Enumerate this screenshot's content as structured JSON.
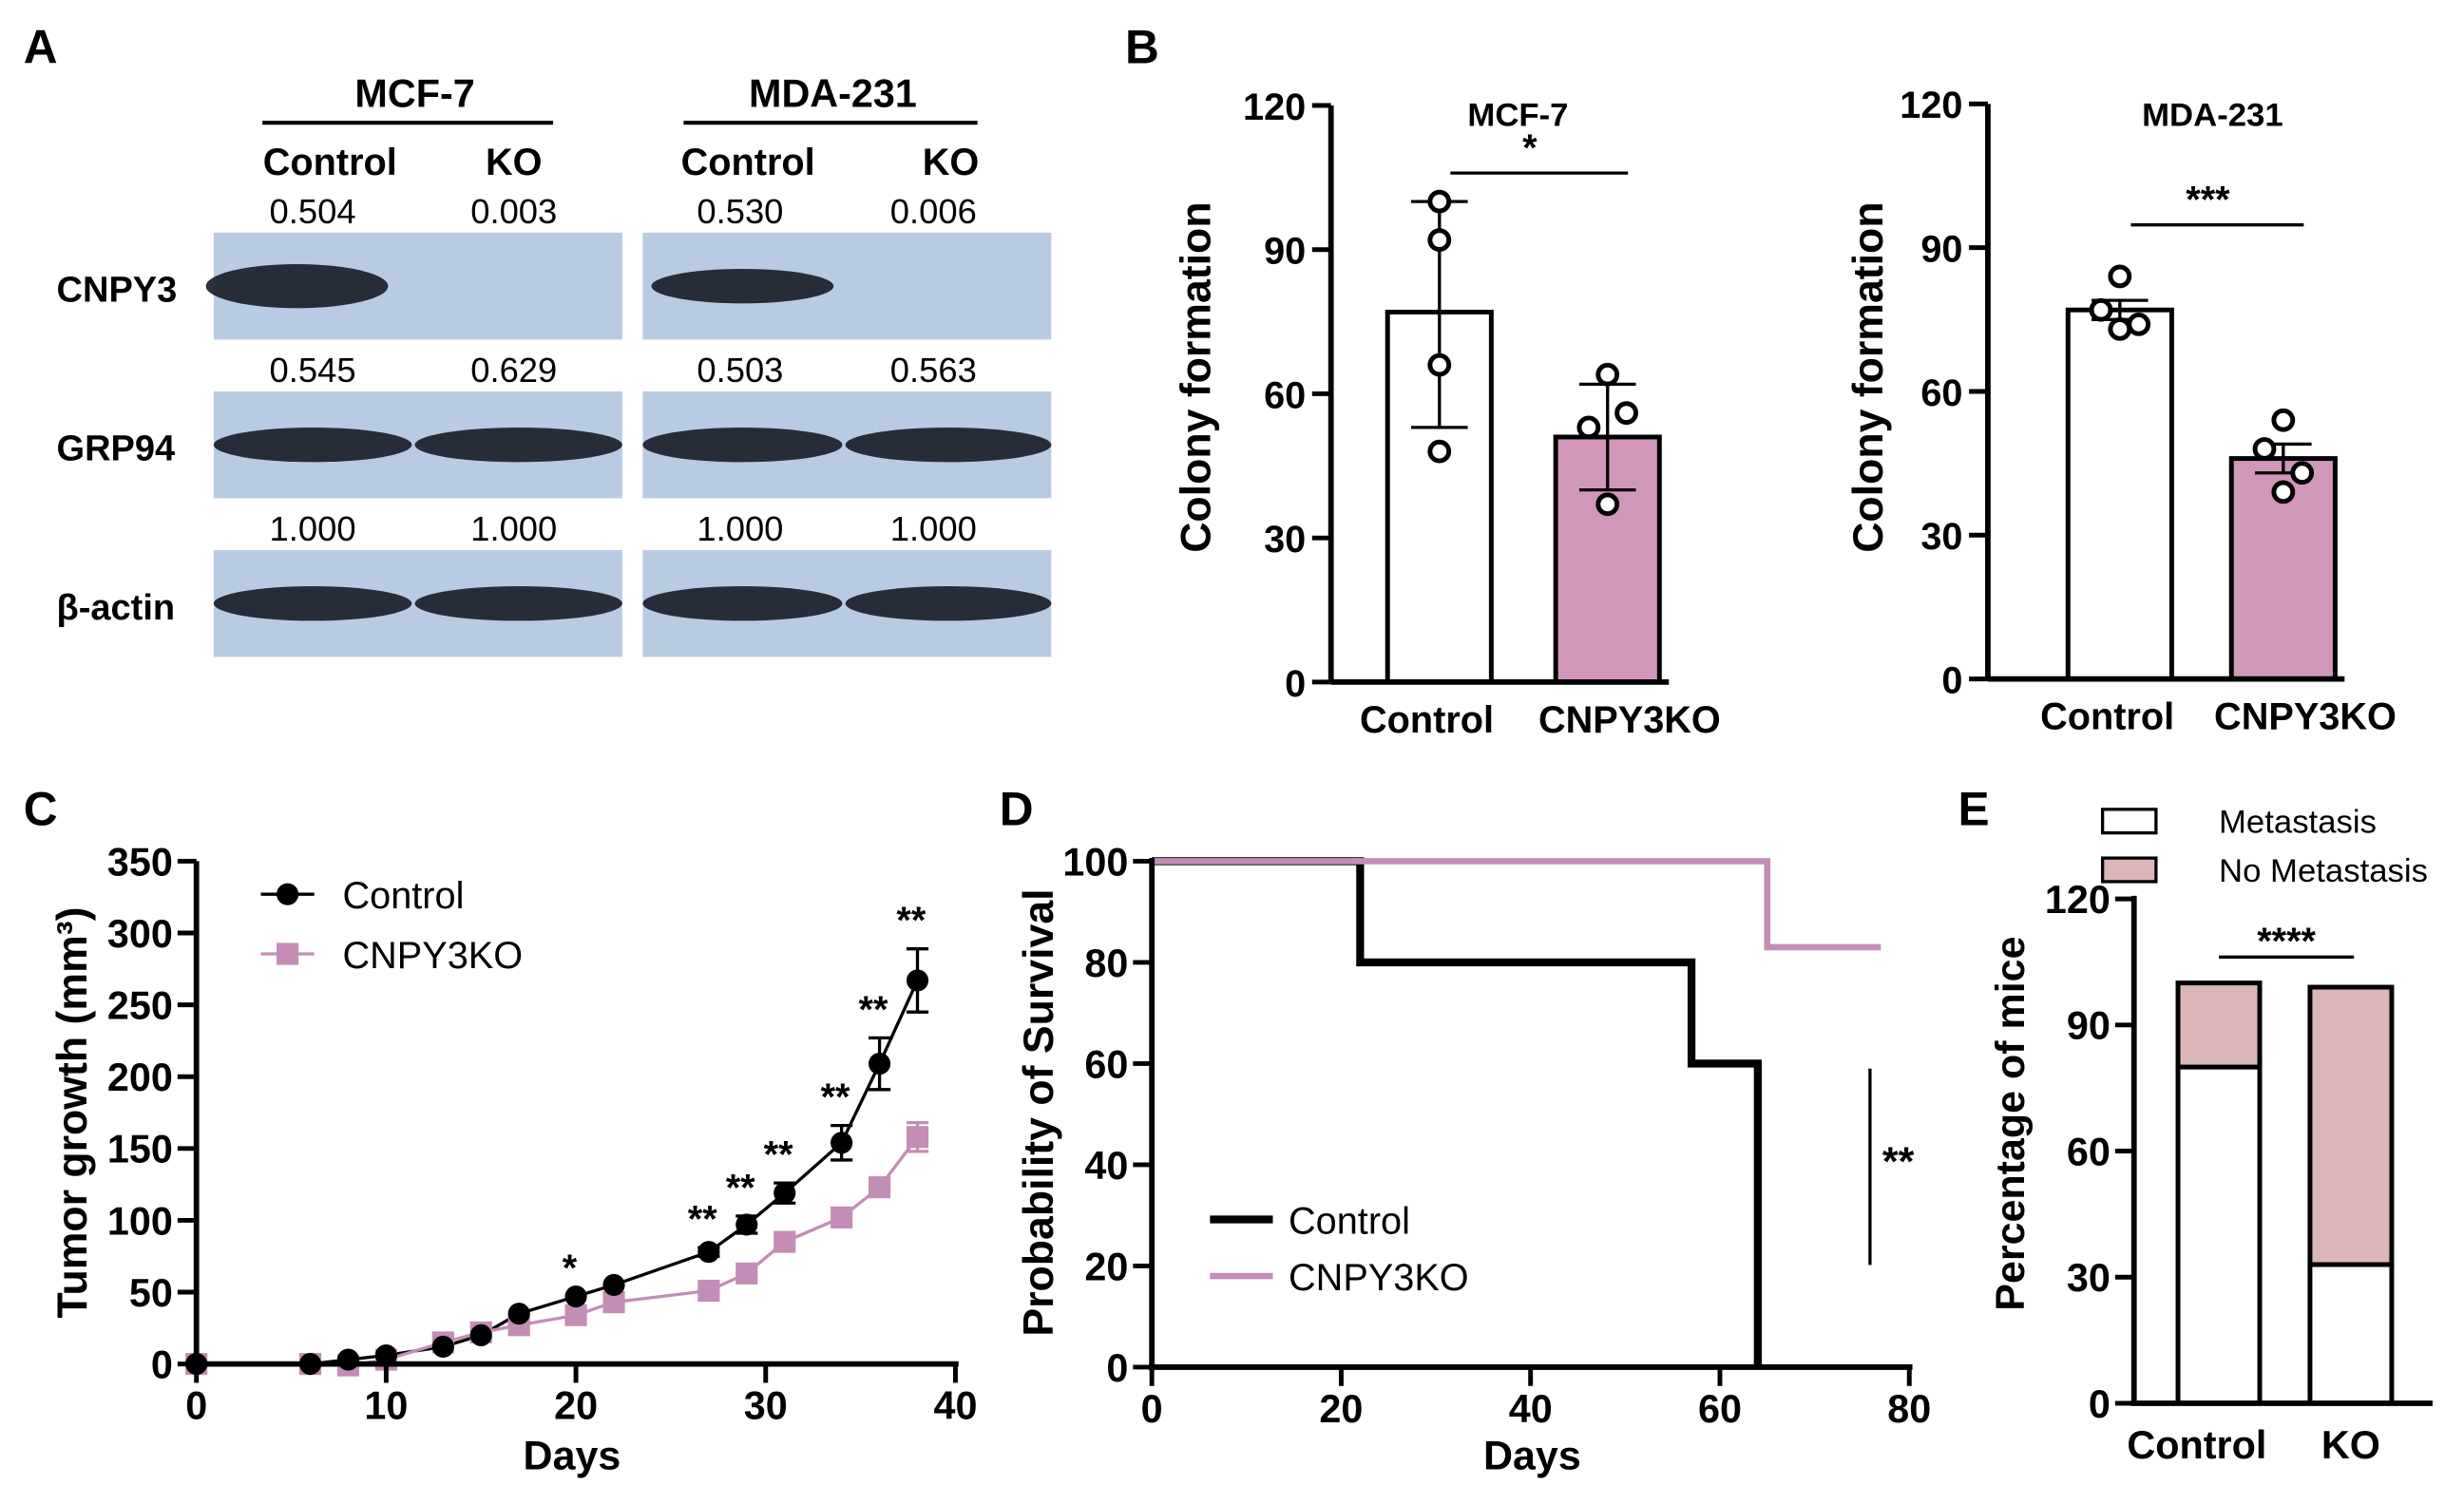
{
  "colors": {
    "ko": "#c48db5",
    "ko_bar": "#d197bb",
    "nometa": "#dcb5b8",
    "blot": "#b9cbe3",
    "band": "#1a1e2a"
  },
  "panel_labels": [
    "A",
    "B",
    "C",
    "D",
    "E"
  ],
  "panel_a": {
    "groups": [
      {
        "name": "MCF-7",
        "lanes": [
          "Control",
          "KO"
        ]
      },
      {
        "name": "MDA-231",
        "lanes": [
          "Control",
          "KO"
        ]
      }
    ],
    "rows": [
      {
        "label": "CNPY3",
        "values": [
          "0.504",
          "0.003",
          "0.530",
          "0.006"
        ],
        "bands": [
          1,
          0,
          0.7,
          0
        ]
      },
      {
        "label": "GRP94",
        "values": [
          "0.545",
          "0.629",
          "0.503",
          "0.563"
        ],
        "bands": [
          1,
          1,
          1,
          1
        ]
      },
      {
        "label": "β-actin",
        "values": [
          "1.000",
          "1.000",
          "1.000",
          "1.000"
        ],
        "bands": [
          1,
          1,
          1,
          1
        ]
      }
    ]
  },
  "chart_data": [
    {
      "panel": "B",
      "type": "bar",
      "title": "MCF-7",
      "ylabel": "Colony formation",
      "ylim": [
        0,
        120
      ],
      "yticks": [
        "0",
        "30",
        "60",
        "90",
        "120"
      ],
      "categories": [
        "Control",
        "CNPY3KO"
      ],
      "values": [
        77,
        51
      ],
      "error_low": [
        53,
        40
      ],
      "error_high": [
        100,
        62
      ],
      "points": [
        [
          100,
          92,
          66,
          48
        ],
        [
          64,
          53,
          56,
          37
        ]
      ],
      "significance": "*"
    },
    {
      "panel": "B",
      "type": "bar",
      "title": "MDA-231",
      "ylabel": "Colony formation",
      "ylim": [
        0,
        120
      ],
      "yticks": [
        "0",
        "30",
        "60",
        "90",
        "120"
      ],
      "categories": [
        "Control",
        "CNPY3KO"
      ],
      "values": [
        77,
        46
      ],
      "error_low": [
        75,
        43
      ],
      "error_high": [
        79,
        49
      ],
      "points": [
        [
          84,
          77,
          74,
          73
        ],
        [
          54,
          48,
          43,
          39
        ]
      ],
      "significance": "***"
    },
    {
      "panel": "C",
      "type": "line",
      "xlabel": "Days",
      "ylabel": "Tumor growth (mm³)",
      "xlim": [
        0,
        40
      ],
      "ylim": [
        0,
        350
      ],
      "xticks": [
        "0",
        "10",
        "20",
        "30",
        "40"
      ],
      "yticks": [
        "0",
        "50",
        "100",
        "150",
        "200",
        "250",
        "300",
        "350"
      ],
      "x": [
        0,
        6,
        8,
        10,
        13,
        15,
        17,
        20,
        22,
        27,
        29,
        31,
        34,
        36,
        38
      ],
      "series": [
        {
          "name": "Control",
          "values": [
            0,
            0,
            3,
            6,
            12,
            20,
            35,
            47,
            55,
            78,
            97,
            119,
            154,
            209,
            267
          ],
          "errors": [
            0,
            0,
            0,
            0,
            0,
            0,
            0,
            0,
            0,
            3,
            6,
            7,
            12,
            18,
            22
          ]
        },
        {
          "name": "CNPY3KO",
          "values": [
            0,
            0,
            -1,
            3,
            15,
            22,
            27,
            34,
            43,
            51,
            63,
            85,
            102,
            123,
            158
          ],
          "errors": [
            0,
            0,
            0,
            0,
            0,
            0,
            0,
            0,
            0,
            0,
            0,
            0,
            0,
            0,
            10
          ]
        }
      ],
      "annotations": [
        {
          "x": 20,
          "text": "*"
        },
        {
          "x": 27,
          "text": "**"
        },
        {
          "x": 29,
          "text": "**"
        },
        {
          "x": 31,
          "text": "**"
        },
        {
          "x": 34,
          "text": "**"
        },
        {
          "x": 36,
          "text": "**"
        },
        {
          "x": 38,
          "text": "**"
        }
      ],
      "legend": "top-left"
    },
    {
      "panel": "D",
      "type": "line",
      "subtype": "survival-step",
      "xlabel": "Days",
      "ylabel": "Probability of Survival",
      "xlim": [
        0,
        80
      ],
      "ylim": [
        0,
        100
      ],
      "xticks": [
        "0",
        "20",
        "40",
        "60",
        "80"
      ],
      "yticks": [
        "0",
        "20",
        "40",
        "60",
        "80",
        "100"
      ],
      "series": [
        {
          "name": "Control",
          "steps": [
            [
              0,
              100
            ],
            [
              22,
              80
            ],
            [
              57,
              60
            ],
            [
              64,
              0
            ]
          ],
          "end": 64
        },
        {
          "name": "CNPY3KO",
          "steps": [
            [
              0,
              100
            ],
            [
              65,
              83
            ]
          ],
          "end": 77
        }
      ],
      "significance": "**",
      "legend": "bottom-left"
    },
    {
      "panel": "E",
      "type": "bar",
      "subtype": "stacked",
      "ylabel": "Percentage of mice",
      "ylim": [
        0,
        120
      ],
      "yticks": [
        "0",
        "30",
        "60",
        "90",
        "120"
      ],
      "categories": [
        "Control",
        "KO"
      ],
      "series": [
        {
          "name": "Metastasis",
          "values": [
            80,
            33
          ]
        },
        {
          "name": "No Metastasis",
          "values": [
            20,
            66
          ]
        }
      ],
      "significance": "****",
      "legend": "top"
    }
  ]
}
